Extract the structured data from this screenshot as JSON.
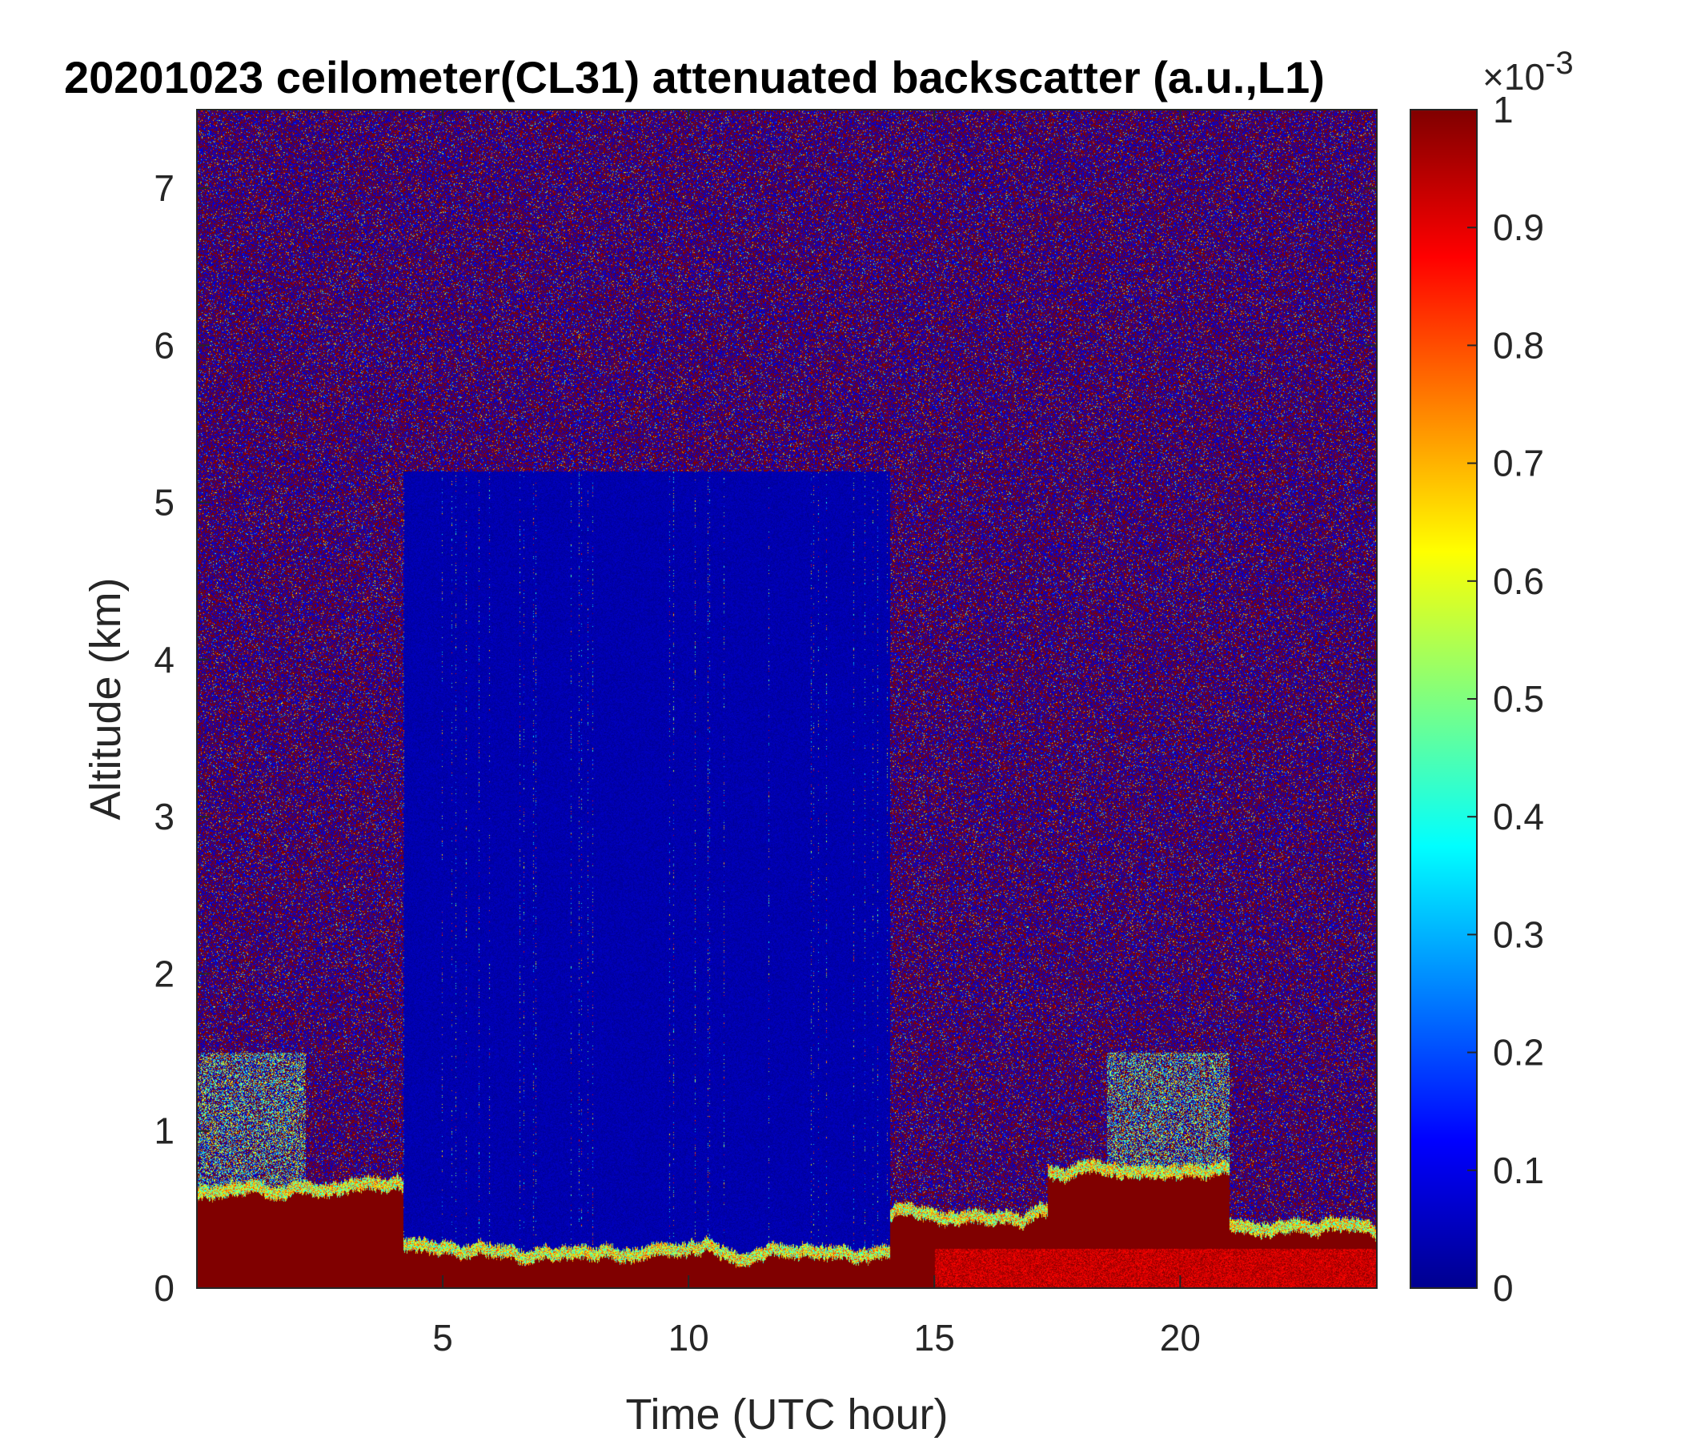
{
  "chart_data": {
    "type": "heatmap",
    "title": "20201023 ceilometer(CL31) attenuated backscatter (a.u.,L1)",
    "xlabel": "Time (UTC hour)",
    "ylabel": "Altitude (km)",
    "xlim": [
      0,
      24
    ],
    "ylim": [
      0,
      7.5
    ],
    "xticks": [
      5,
      10,
      15,
      20
    ],
    "yticks": [
      0,
      1,
      2,
      3,
      4,
      5,
      6,
      7
    ],
    "colorbar": {
      "range": [
        0,
        0.001
      ],
      "ticks": [
        "0",
        "0.1",
        "0.2",
        "0.3",
        "0.4",
        "0.5",
        "0.6",
        "0.7",
        "0.8",
        "0.9",
        "1"
      ],
      "exponent_base": "×10",
      "exponent_power": "-3",
      "colormap": "jet"
    },
    "regions": [
      {
        "t0": 0,
        "t1": 4.2,
        "noise": "mixed",
        "boundary_layer_km": 0.57
      },
      {
        "t0": 4.2,
        "t1": 14.1,
        "noise": "low",
        "boundary_layer_km": 0.2,
        "clear_to_km": 5.2
      },
      {
        "t0": 14.1,
        "t1": 17.3,
        "noise": "mixed",
        "boundary_layer_km": 0.45
      },
      {
        "t0": 17.3,
        "t1": 21.0,
        "noise": "mixed",
        "boundary_layer_km": 0.7
      },
      {
        "t0": 21.0,
        "t1": 24,
        "noise": "mixed",
        "boundary_layer_km": 0.35
      }
    ]
  }
}
